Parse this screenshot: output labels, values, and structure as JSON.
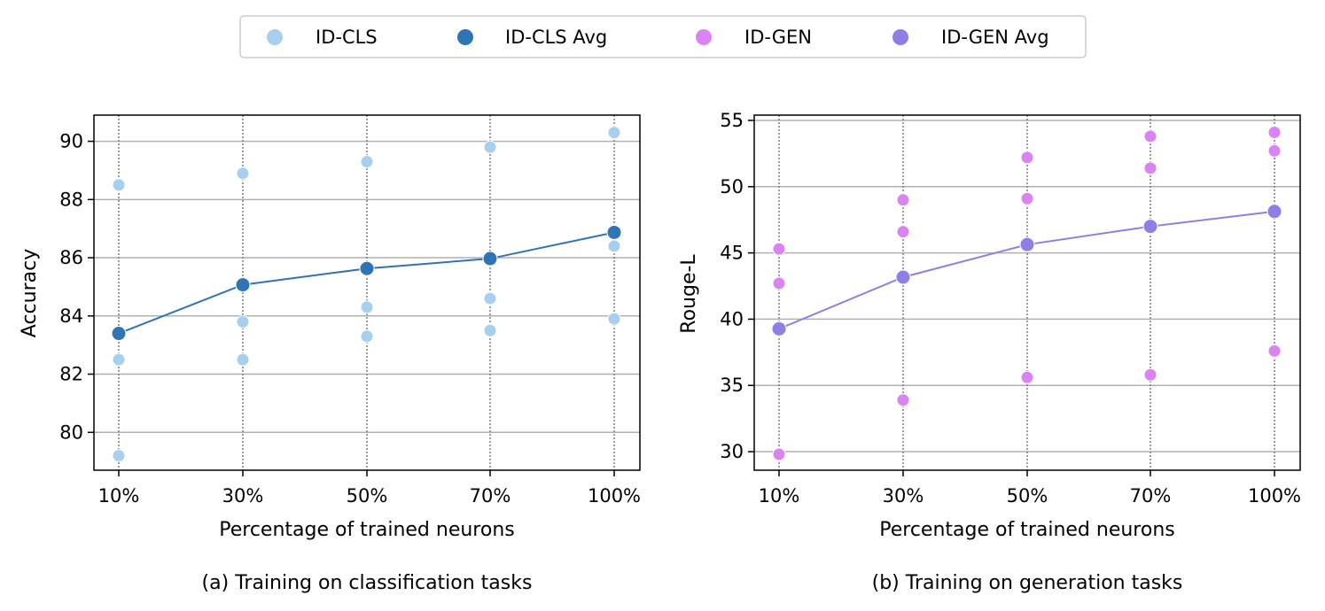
{
  "legend": {
    "entries": [
      {
        "label": "ID-CLS",
        "color": "#a7cfee"
      },
      {
        "label": "ID-CLS Avg",
        "color": "#2f74b5"
      },
      {
        "label": "ID-GEN",
        "color": "#db83f2"
      },
      {
        "label": "ID-GEN Avg",
        "color": "#8f7ee6"
      }
    ],
    "placement": "top-center"
  },
  "chart_data": [
    {
      "type": "scatter",
      "caption": "(a) Training on classification tasks",
      "xlabel": "Percentage of trained neurons",
      "ylabel": "Accuracy",
      "categories": [
        "10%",
        "30%",
        "50%",
        "70%",
        "100%"
      ],
      "ylim": [
        78.7,
        90.9
      ],
      "yticks": [
        80,
        82,
        84,
        86,
        88,
        90
      ],
      "grid": true,
      "points": {
        "name": "ID-CLS",
        "color": "#a7cfee",
        "values": [
          [
            88.5,
            82.5,
            79.2
          ],
          [
            88.9,
            83.8,
            82.5
          ],
          [
            89.3,
            84.3,
            83.3
          ],
          [
            89.8,
            84.6,
            83.5
          ],
          [
            90.3,
            86.4,
            83.9
          ]
        ]
      },
      "avg": {
        "name": "ID-CLS Avg",
        "color": "#2f74b5",
        "values": [
          83.4,
          85.07,
          85.63,
          85.97,
          86.87
        ]
      }
    },
    {
      "type": "scatter",
      "caption": "(b) Training on generation tasks",
      "xlabel": "Percentage of trained neurons",
      "ylabel": "Rouge-L",
      "categories": [
        "10%",
        "30%",
        "50%",
        "70%",
        "100%"
      ],
      "ylim": [
        28.6,
        55.4
      ],
      "yticks": [
        30,
        35,
        40,
        45,
        50,
        55
      ],
      "grid": true,
      "points": {
        "name": "ID-GEN",
        "color": "#db83f2",
        "values": [
          [
            45.3,
            42.7,
            29.8
          ],
          [
            49.0,
            46.6,
            33.9
          ],
          [
            52.2,
            49.1,
            35.6
          ],
          [
            53.8,
            51.4,
            35.8
          ],
          [
            54.1,
            52.7,
            37.6
          ]
        ]
      },
      "avg": {
        "name": "ID-GEN Avg",
        "color": "#8f7ee6",
        "values": [
          39.27,
          43.17,
          45.63,
          47.0,
          48.13
        ]
      }
    }
  ]
}
